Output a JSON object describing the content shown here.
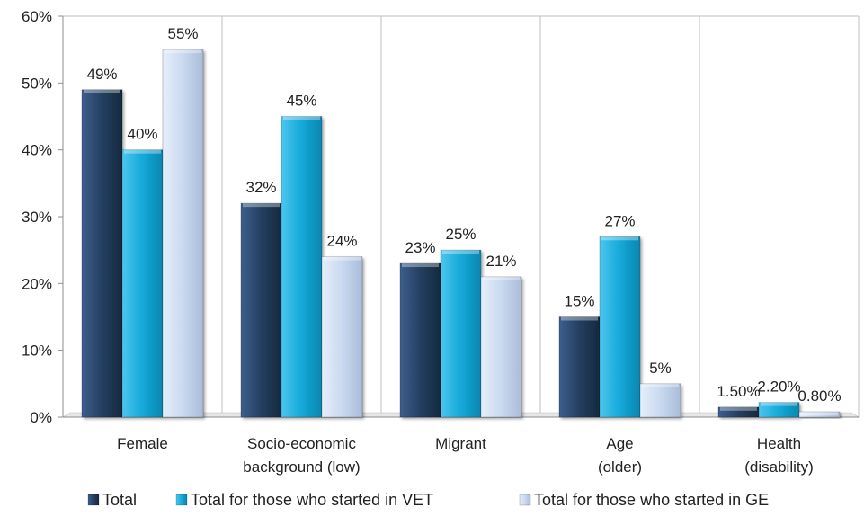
{
  "chart_data": {
    "type": "bar",
    "title": "",
    "xlabel": "",
    "ylabel": "",
    "ylim": [
      0,
      60
    ],
    "yticks": [
      "0%",
      "10%",
      "20%",
      "30%",
      "40%",
      "50%",
      "60%"
    ],
    "grid": "vertical separators between categories",
    "legend_position": "bottom",
    "categories": [
      [
        "Female"
      ],
      [
        "Socio-economic",
        "background (low)"
      ],
      [
        "Migrant"
      ],
      [
        "Age",
        "(older)"
      ],
      [
        "Health",
        "(disability)"
      ]
    ],
    "series": [
      {
        "name": "Total",
        "color": "#243f60",
        "values": [
          49,
          32,
          23,
          15,
          1.5
        ],
        "labels": [
          "49%",
          "32%",
          "23%",
          "15%",
          "1.50%"
        ]
      },
      {
        "name": "Total for those who started in VET",
        "color": "#14a9d9",
        "values": [
          40,
          45,
          25,
          27,
          2.2
        ],
        "labels": [
          "40%",
          "45%",
          "25%",
          "27%",
          "2.20%"
        ]
      },
      {
        "name": "Total for those who started in GE",
        "color": "#c9d9f0",
        "values": [
          55,
          24,
          21,
          5,
          0.8
        ],
        "labels": [
          "55%",
          "24%",
          "21%",
          "5%",
          "0.80%"
        ]
      }
    ]
  }
}
